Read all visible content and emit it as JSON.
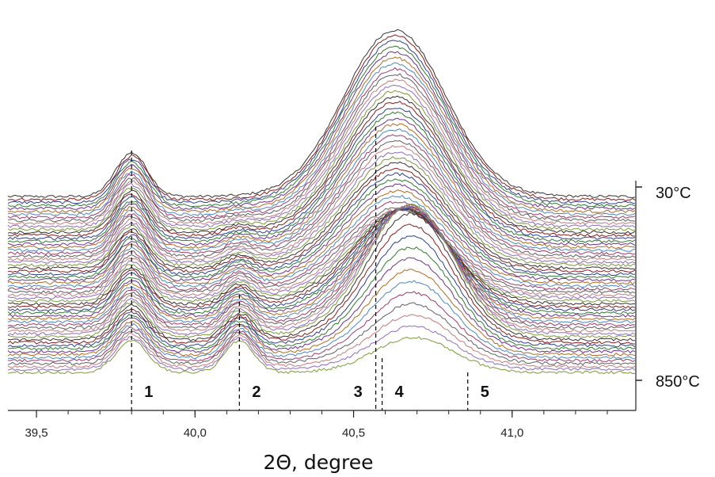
{
  "chart_data": {
    "type": "line",
    "subtype": "waterfall-stacked",
    "title": "",
    "xlabel": "2Θ, degree",
    "ylabel": "",
    "xlim": [
      39.41,
      41.39
    ],
    "xticks": [
      39.5,
      40.0,
      40.5,
      41.0
    ],
    "xtick_labels": [
      "39,5",
      "40,0",
      "40,5",
      "41,0"
    ],
    "temperature_labels": {
      "top": "30°C",
      "bottom": "850°C"
    },
    "series_count": 60,
    "series_colors": [
      "#3b2f2f",
      "#8b1a1a",
      "#2e3f8f",
      "#2f7a2f",
      "#6f2f8f",
      "#b06a20",
      "#4a86c5",
      "#a0396a",
      "#5e5e5e",
      "#c47b7b",
      "#8e6bbf",
      "#7a9a3a"
    ],
    "peak_markers": [
      {
        "label": "1",
        "x": 39.8
      },
      {
        "label": "2",
        "x": 40.14
      },
      {
        "label": "3",
        "x": 40.57
      },
      {
        "label": "4",
        "x": 40.59
      },
      {
        "label": "5",
        "x": 40.86
      }
    ],
    "peaks_model": [
      {
        "x": 39.8,
        "amp_top": 55,
        "amp_bottom": 40,
        "sigma": 0.05
      },
      {
        "x": 40.14,
        "amp_top": 0,
        "amp_bottom": 40,
        "sigma": 0.045
      },
      {
        "x": 40.63,
        "amp_top": 210,
        "amp_bottom": 0,
        "sigma": 0.16
      },
      {
        "x": 40.69,
        "amp_top": 0,
        "amp_bottom": 22,
        "sigma": 0.12
      }
    ]
  }
}
